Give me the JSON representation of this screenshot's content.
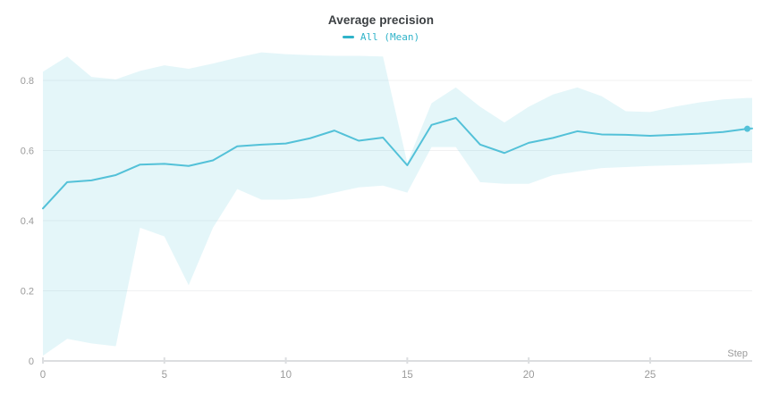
{
  "header": {
    "title": "Average precision"
  },
  "legend": {
    "items": [
      {
        "label": "All (Mean)",
        "swatch": "line-dash"
      }
    ]
  },
  "axes": {
    "x_title": "Step"
  },
  "colors": {
    "accent_line": "#53c1d8",
    "band_fill": "rgba(88,197,218,0.16)",
    "legend_text": "#30b3c9",
    "title_text": "#3b3f42",
    "tick_text": "#9b9b9b",
    "grid_line": "#f0f1f2",
    "axis_line": "#dcdee0",
    "background": "#ffffff"
  },
  "chart_data": {
    "type": "line",
    "title": "Average precision",
    "xlabel": "Step",
    "ylabel": "",
    "x": [
      0,
      1,
      2,
      3,
      4,
      5,
      6,
      7,
      8,
      9,
      10,
      11,
      12,
      13,
      14,
      15,
      16,
      17,
      18,
      19,
      20,
      21,
      22,
      23,
      24,
      25,
      26,
      27,
      28,
      29
    ],
    "series": [
      {
        "name": "All (Mean)",
        "values": [
          0.435,
          0.51,
          0.515,
          0.53,
          0.56,
          0.562,
          0.556,
          0.572,
          0.612,
          0.617,
          0.62,
          0.635,
          0.657,
          0.628,
          0.637,
          0.558,
          0.673,
          0.693,
          0.617,
          0.593,
          0.622,
          0.636,
          0.655,
          0.646,
          0.645,
          0.642,
          0.645,
          0.648,
          0.653,
          0.662
        ]
      }
    ],
    "band": {
      "belongs_to": "All (Mean)",
      "upper": [
        0.825,
        0.868,
        0.81,
        0.803,
        0.827,
        0.843,
        0.833,
        0.848,
        0.865,
        0.88,
        0.875,
        0.872,
        0.87,
        0.87,
        0.868,
        0.565,
        0.735,
        0.78,
        0.725,
        0.68,
        0.725,
        0.76,
        0.78,
        0.755,
        0.712,
        0.71,
        0.725,
        0.737,
        0.746,
        0.75
      ],
      "lower": [
        0.015,
        0.063,
        0.05,
        0.042,
        0.38,
        0.355,
        0.216,
        0.38,
        0.49,
        0.46,
        0.46,
        0.465,
        0.48,
        0.495,
        0.5,
        0.48,
        0.61,
        0.61,
        0.51,
        0.505,
        0.505,
        0.53,
        0.54,
        0.55,
        0.553,
        0.556,
        0.558,
        0.56,
        0.562,
        0.565
      ]
    },
    "xlim": [
      0,
      29.2
    ],
    "ylim": [
      0,
      1.0
    ],
    "x_ticks": [
      0,
      5,
      10,
      15,
      20,
      25
    ],
    "y_ticks": [
      0,
      0.2,
      0.4,
      0.6,
      0.8
    ],
    "y_tick_labels": [
      "0",
      "0.2",
      "0.4",
      "0.6",
      "0.8"
    ],
    "grid": "horizontal-light",
    "legend_position": "top-center",
    "end_marker_step": 29
  }
}
